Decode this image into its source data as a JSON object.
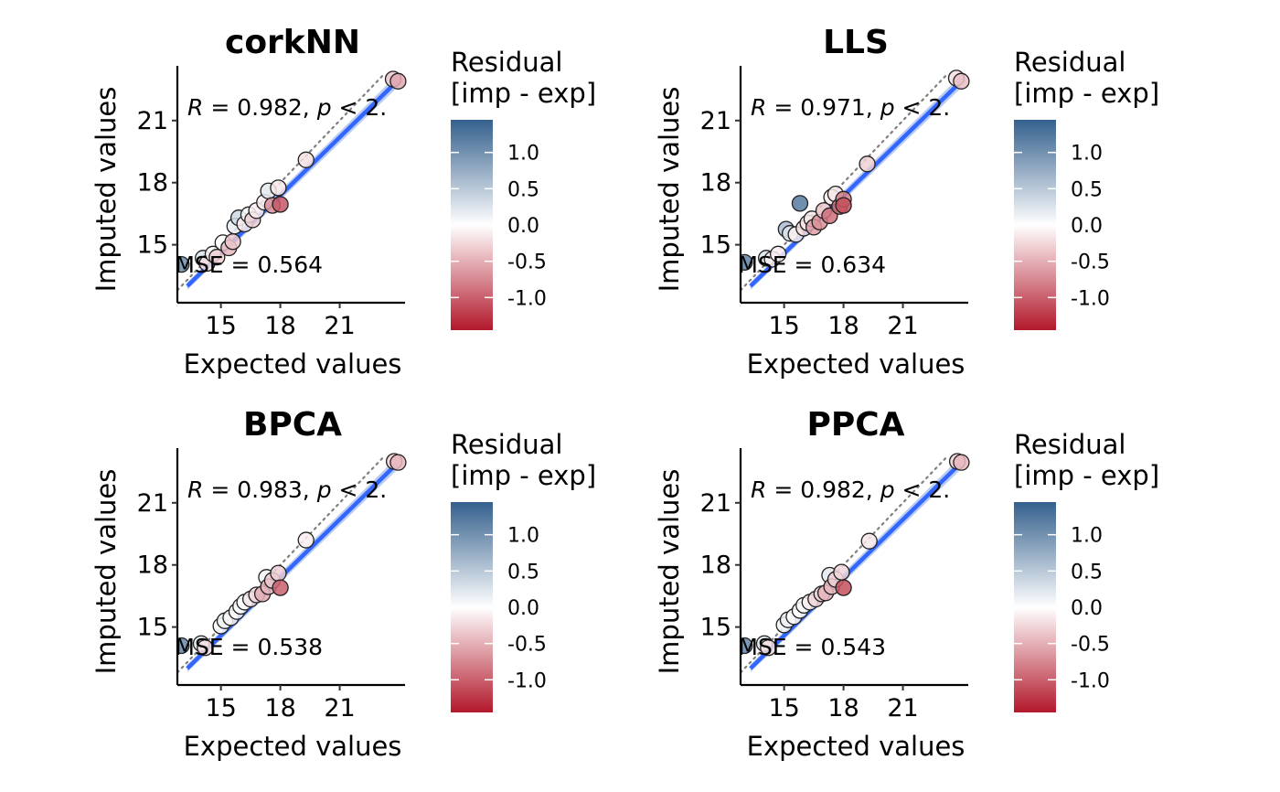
{
  "colorbar": {
    "title_line1": "Residual",
    "title_line2": "[imp - exp]",
    "ticks": [
      1.0,
      0.5,
      0.0,
      -0.5,
      -1.0
    ],
    "tick_labels": [
      "1.0",
      "0.5",
      "0.0",
      "-0.5",
      "-1.0"
    ],
    "range": [
      -1.45,
      1.45
    ],
    "colors": {
      "high": "#34608d",
      "mid": "#ffffff",
      "low": "#b2182b"
    }
  },
  "chart_data": [
    {
      "type": "scatter",
      "title": "corkNN",
      "xlabel": "Expected values",
      "ylabel": "Imputed values",
      "xlim": [
        12.8,
        24.3
      ],
      "ylim": [
        12.2,
        23.2
      ],
      "xticks": [
        15,
        18,
        21
      ],
      "yticks": [
        15,
        18,
        21
      ],
      "stat_r_label": "R",
      "stat_r_text": " = 0.982, ",
      "stat_p_label": "p",
      "stat_p_text": " < 2.",
      "rmse_text": "RMSE = 0.564",
      "fit_line": [
        [
          13.3,
          13.0
        ],
        [
          23.9,
          22.9
        ]
      ],
      "points": [
        {
          "x": 13.0,
          "y": 14.05,
          "residual": 1.05
        },
        {
          "x": 14.1,
          "y": 14.35,
          "residual": 0.25
        },
        {
          "x": 14.3,
          "y": 14.1,
          "residual": -0.2
        },
        {
          "x": 14.6,
          "y": 14.55,
          "residual": -0.05
        },
        {
          "x": 14.8,
          "y": 14.4,
          "residual": -0.3
        },
        {
          "x": 15.1,
          "y": 15.1,
          "residual": 0.0
        },
        {
          "x": 15.4,
          "y": 14.85,
          "residual": -0.45
        },
        {
          "x": 15.6,
          "y": 15.15,
          "residual": -0.35
        },
        {
          "x": 15.7,
          "y": 15.9,
          "residual": 0.15
        },
        {
          "x": 15.9,
          "y": 16.3,
          "residual": 0.35
        },
        {
          "x": 16.2,
          "y": 16.0,
          "residual": -0.1
        },
        {
          "x": 16.4,
          "y": 16.45,
          "residual": 0.05
        },
        {
          "x": 16.6,
          "y": 16.2,
          "residual": -0.3
        },
        {
          "x": 16.8,
          "y": 16.65,
          "residual": -0.1
        },
        {
          "x": 17.2,
          "y": 17.05,
          "residual": -0.1
        },
        {
          "x": 17.4,
          "y": 17.6,
          "residual": 0.2
        },
        {
          "x": 17.6,
          "y": 16.9,
          "residual": -0.7
        },
        {
          "x": 17.9,
          "y": 17.75,
          "residual": -0.15
        },
        {
          "x": 18.0,
          "y": 16.95,
          "residual": -1.05
        },
        {
          "x": 19.3,
          "y": 19.1,
          "residual": -0.2
        },
        {
          "x": 23.7,
          "y": 23.0,
          "residual": -0.35
        },
        {
          "x": 23.95,
          "y": 22.9,
          "residual": -0.55
        }
      ]
    },
    {
      "type": "scatter",
      "title": "LLS",
      "xlabel": "Expected values",
      "ylabel": "Imputed values",
      "xlim": [
        12.8,
        24.3
      ],
      "ylim": [
        12.2,
        23.2
      ],
      "xticks": [
        15,
        18,
        21
      ],
      "yticks": [
        15,
        18,
        21
      ],
      "stat_r_label": "R",
      "stat_r_text": " = 0.971, ",
      "stat_p_label": "p",
      "stat_p_text": " < 2.",
      "rmse_text": "RMSE = 0.634",
      "fit_line": [
        [
          13.3,
          13.0
        ],
        [
          23.9,
          22.85
        ]
      ],
      "points": [
        {
          "x": 13.0,
          "y": 14.15,
          "residual": 1.15
        },
        {
          "x": 14.1,
          "y": 14.35,
          "residual": 0.25
        },
        {
          "x": 14.4,
          "y": 14.3,
          "residual": -0.1
        },
        {
          "x": 14.7,
          "y": 14.55,
          "residual": -0.1
        },
        {
          "x": 15.1,
          "y": 15.75,
          "residual": 0.6
        },
        {
          "x": 15.3,
          "y": 15.55,
          "residual": 0.25
        },
        {
          "x": 15.6,
          "y": 15.5,
          "residual": -0.1
        },
        {
          "x": 15.8,
          "y": 17.0,
          "residual": 1.2
        },
        {
          "x": 16.0,
          "y": 15.8,
          "residual": -0.2
        },
        {
          "x": 16.2,
          "y": 16.05,
          "residual": -0.15
        },
        {
          "x": 16.4,
          "y": 16.25,
          "residual": -0.15
        },
        {
          "x": 16.5,
          "y": 15.85,
          "residual": -0.6
        },
        {
          "x": 16.8,
          "y": 16.1,
          "residual": -0.7
        },
        {
          "x": 17.0,
          "y": 16.65,
          "residual": -0.35
        },
        {
          "x": 17.3,
          "y": 16.4,
          "residual": -0.9
        },
        {
          "x": 17.4,
          "y": 17.3,
          "residual": -0.1
        },
        {
          "x": 17.6,
          "y": 17.45,
          "residual": -0.15
        },
        {
          "x": 17.8,
          "y": 16.85,
          "residual": -0.95
        },
        {
          "x": 18.0,
          "y": 17.2,
          "residual": -0.8
        },
        {
          "x": 18.0,
          "y": 16.9,
          "residual": -1.1
        },
        {
          "x": 19.2,
          "y": 18.9,
          "residual": -0.3
        },
        {
          "x": 23.7,
          "y": 23.05,
          "residual": -0.2
        },
        {
          "x": 23.95,
          "y": 22.9,
          "residual": -0.4
        }
      ]
    },
    {
      "type": "scatter",
      "title": "BPCA",
      "xlabel": "Expected values",
      "ylabel": "Imputed values",
      "xlim": [
        12.8,
        24.3
      ],
      "ylim": [
        12.2,
        23.2
      ],
      "xticks": [
        15,
        18,
        21
      ],
      "yticks": [
        15,
        18,
        21
      ],
      "stat_r_label": "R",
      "stat_r_text": " = 0.983, ",
      "stat_p_label": "p",
      "stat_p_text": " < 2.",
      "rmse_text": "RMSE = 0.538",
      "fit_line": [
        [
          13.3,
          13.0
        ],
        [
          23.9,
          22.9
        ]
      ],
      "points": [
        {
          "x": 13.0,
          "y": 14.1,
          "residual": 1.1
        },
        {
          "x": 14.0,
          "y": 14.2,
          "residual": 0.2
        },
        {
          "x": 14.2,
          "y": 14.0,
          "residual": -0.2
        },
        {
          "x": 15.0,
          "y": 15.05,
          "residual": 0.05
        },
        {
          "x": 15.2,
          "y": 15.3,
          "residual": 0.1
        },
        {
          "x": 15.5,
          "y": 15.45,
          "residual": -0.05
        },
        {
          "x": 15.8,
          "y": 15.75,
          "residual": -0.05
        },
        {
          "x": 16.0,
          "y": 16.0,
          "residual": 0.0
        },
        {
          "x": 16.2,
          "y": 16.2,
          "residual": 0.0
        },
        {
          "x": 16.5,
          "y": 16.35,
          "residual": -0.15
        },
        {
          "x": 16.8,
          "y": 16.55,
          "residual": -0.25
        },
        {
          "x": 17.1,
          "y": 16.6,
          "residual": -0.5
        },
        {
          "x": 17.3,
          "y": 17.4,
          "residual": 0.1
        },
        {
          "x": 17.4,
          "y": 16.95,
          "residual": -0.45
        },
        {
          "x": 17.6,
          "y": 17.25,
          "residual": -0.35
        },
        {
          "x": 17.9,
          "y": 17.6,
          "residual": -0.3
        },
        {
          "x": 18.0,
          "y": 16.9,
          "residual": -1.0
        },
        {
          "x": 19.3,
          "y": 19.2,
          "residual": -0.1
        },
        {
          "x": 23.75,
          "y": 23.0,
          "residual": -0.3
        },
        {
          "x": 23.95,
          "y": 22.95,
          "residual": -0.45
        }
      ]
    },
    {
      "type": "scatter",
      "title": "PPCA",
      "xlabel": "Expected values",
      "ylabel": "Imputed values",
      "xlim": [
        12.8,
        24.3
      ],
      "ylim": [
        12.2,
        23.2
      ],
      "xticks": [
        15,
        18,
        21
      ],
      "yticks": [
        15,
        18,
        21
      ],
      "stat_r_label": "R",
      "stat_r_text": " = 0.982, ",
      "stat_p_label": "p",
      "stat_p_text": " < 2.",
      "rmse_text": "RMSE = 0.543",
      "fit_line": [
        [
          13.3,
          13.0
        ],
        [
          23.9,
          22.9
        ]
      ],
      "points": [
        {
          "x": 13.0,
          "y": 14.1,
          "residual": 1.1
        },
        {
          "x": 14.0,
          "y": 14.2,
          "residual": 0.2
        },
        {
          "x": 14.2,
          "y": 14.0,
          "residual": -0.2
        },
        {
          "x": 15.0,
          "y": 15.1,
          "residual": 0.1
        },
        {
          "x": 15.2,
          "y": 15.35,
          "residual": 0.15
        },
        {
          "x": 15.5,
          "y": 15.5,
          "residual": 0.0
        },
        {
          "x": 15.8,
          "y": 15.8,
          "residual": 0.0
        },
        {
          "x": 16.0,
          "y": 16.05,
          "residual": 0.05
        },
        {
          "x": 16.3,
          "y": 16.2,
          "residual": -0.1
        },
        {
          "x": 16.6,
          "y": 16.35,
          "residual": -0.25
        },
        {
          "x": 16.9,
          "y": 16.6,
          "residual": -0.3
        },
        {
          "x": 17.1,
          "y": 16.65,
          "residual": -0.45
        },
        {
          "x": 17.3,
          "y": 17.5,
          "residual": 0.2
        },
        {
          "x": 17.4,
          "y": 16.95,
          "residual": -0.45
        },
        {
          "x": 17.6,
          "y": 17.3,
          "residual": -0.3
        },
        {
          "x": 17.9,
          "y": 17.65,
          "residual": -0.25
        },
        {
          "x": 18.0,
          "y": 16.9,
          "residual": -1.1
        },
        {
          "x": 19.3,
          "y": 19.15,
          "residual": -0.15
        },
        {
          "x": 23.75,
          "y": 23.0,
          "residual": -0.3
        },
        {
          "x": 23.95,
          "y": 22.95,
          "residual": -0.45
        }
      ]
    }
  ]
}
